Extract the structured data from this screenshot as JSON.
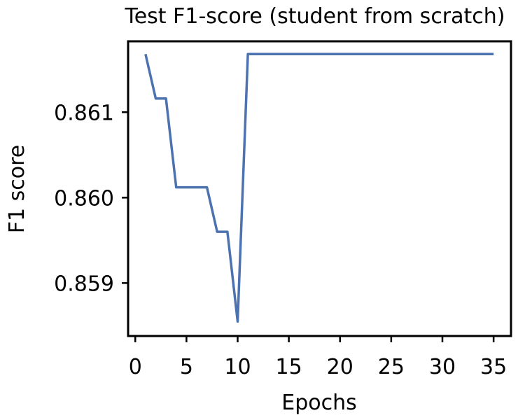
{
  "chart_data": {
    "type": "line",
    "title": "Test F1-score (student from scratch)",
    "xlabel": "Epochs",
    "ylabel": "F1 score",
    "xlim": [
      -0.7,
      36.7
    ],
    "ylim": [
      0.85838,
      0.86183
    ],
    "xticks": [
      0,
      5,
      10,
      15,
      20,
      25,
      30,
      35
    ],
    "xtick_labels": [
      "0",
      "5",
      "10",
      "15",
      "20",
      "25",
      "30",
      "35"
    ],
    "yticks": [
      0.859,
      0.86,
      0.861
    ],
    "ytick_labels": [
      "0.859",
      "0.860",
      "0.861"
    ],
    "grid": false,
    "legend": "none",
    "colors": {
      "line": "#4c72b0",
      "axes": "#000000"
    },
    "series": [
      {
        "x": [
          1,
          2,
          3,
          4,
          5,
          6,
          7,
          8,
          9,
          10,
          11,
          12,
          13,
          14,
          15,
          16,
          17,
          18,
          19,
          20,
          21,
          22,
          23,
          24,
          25,
          26,
          27,
          28,
          29,
          30,
          31,
          32,
          33,
          34,
          35
        ],
        "values": [
          0.86168,
          0.86116,
          0.86116,
          0.86012,
          0.86012,
          0.86012,
          0.86012,
          0.8596,
          0.8596,
          0.85855,
          0.86168,
          0.86168,
          0.86168,
          0.86168,
          0.86168,
          0.86168,
          0.86168,
          0.86168,
          0.86168,
          0.86168,
          0.86168,
          0.86168,
          0.86168,
          0.86168,
          0.86168,
          0.86168,
          0.86168,
          0.86168,
          0.86168,
          0.86168,
          0.86168,
          0.86168,
          0.86168,
          0.86168,
          0.86168
        ]
      }
    ]
  }
}
